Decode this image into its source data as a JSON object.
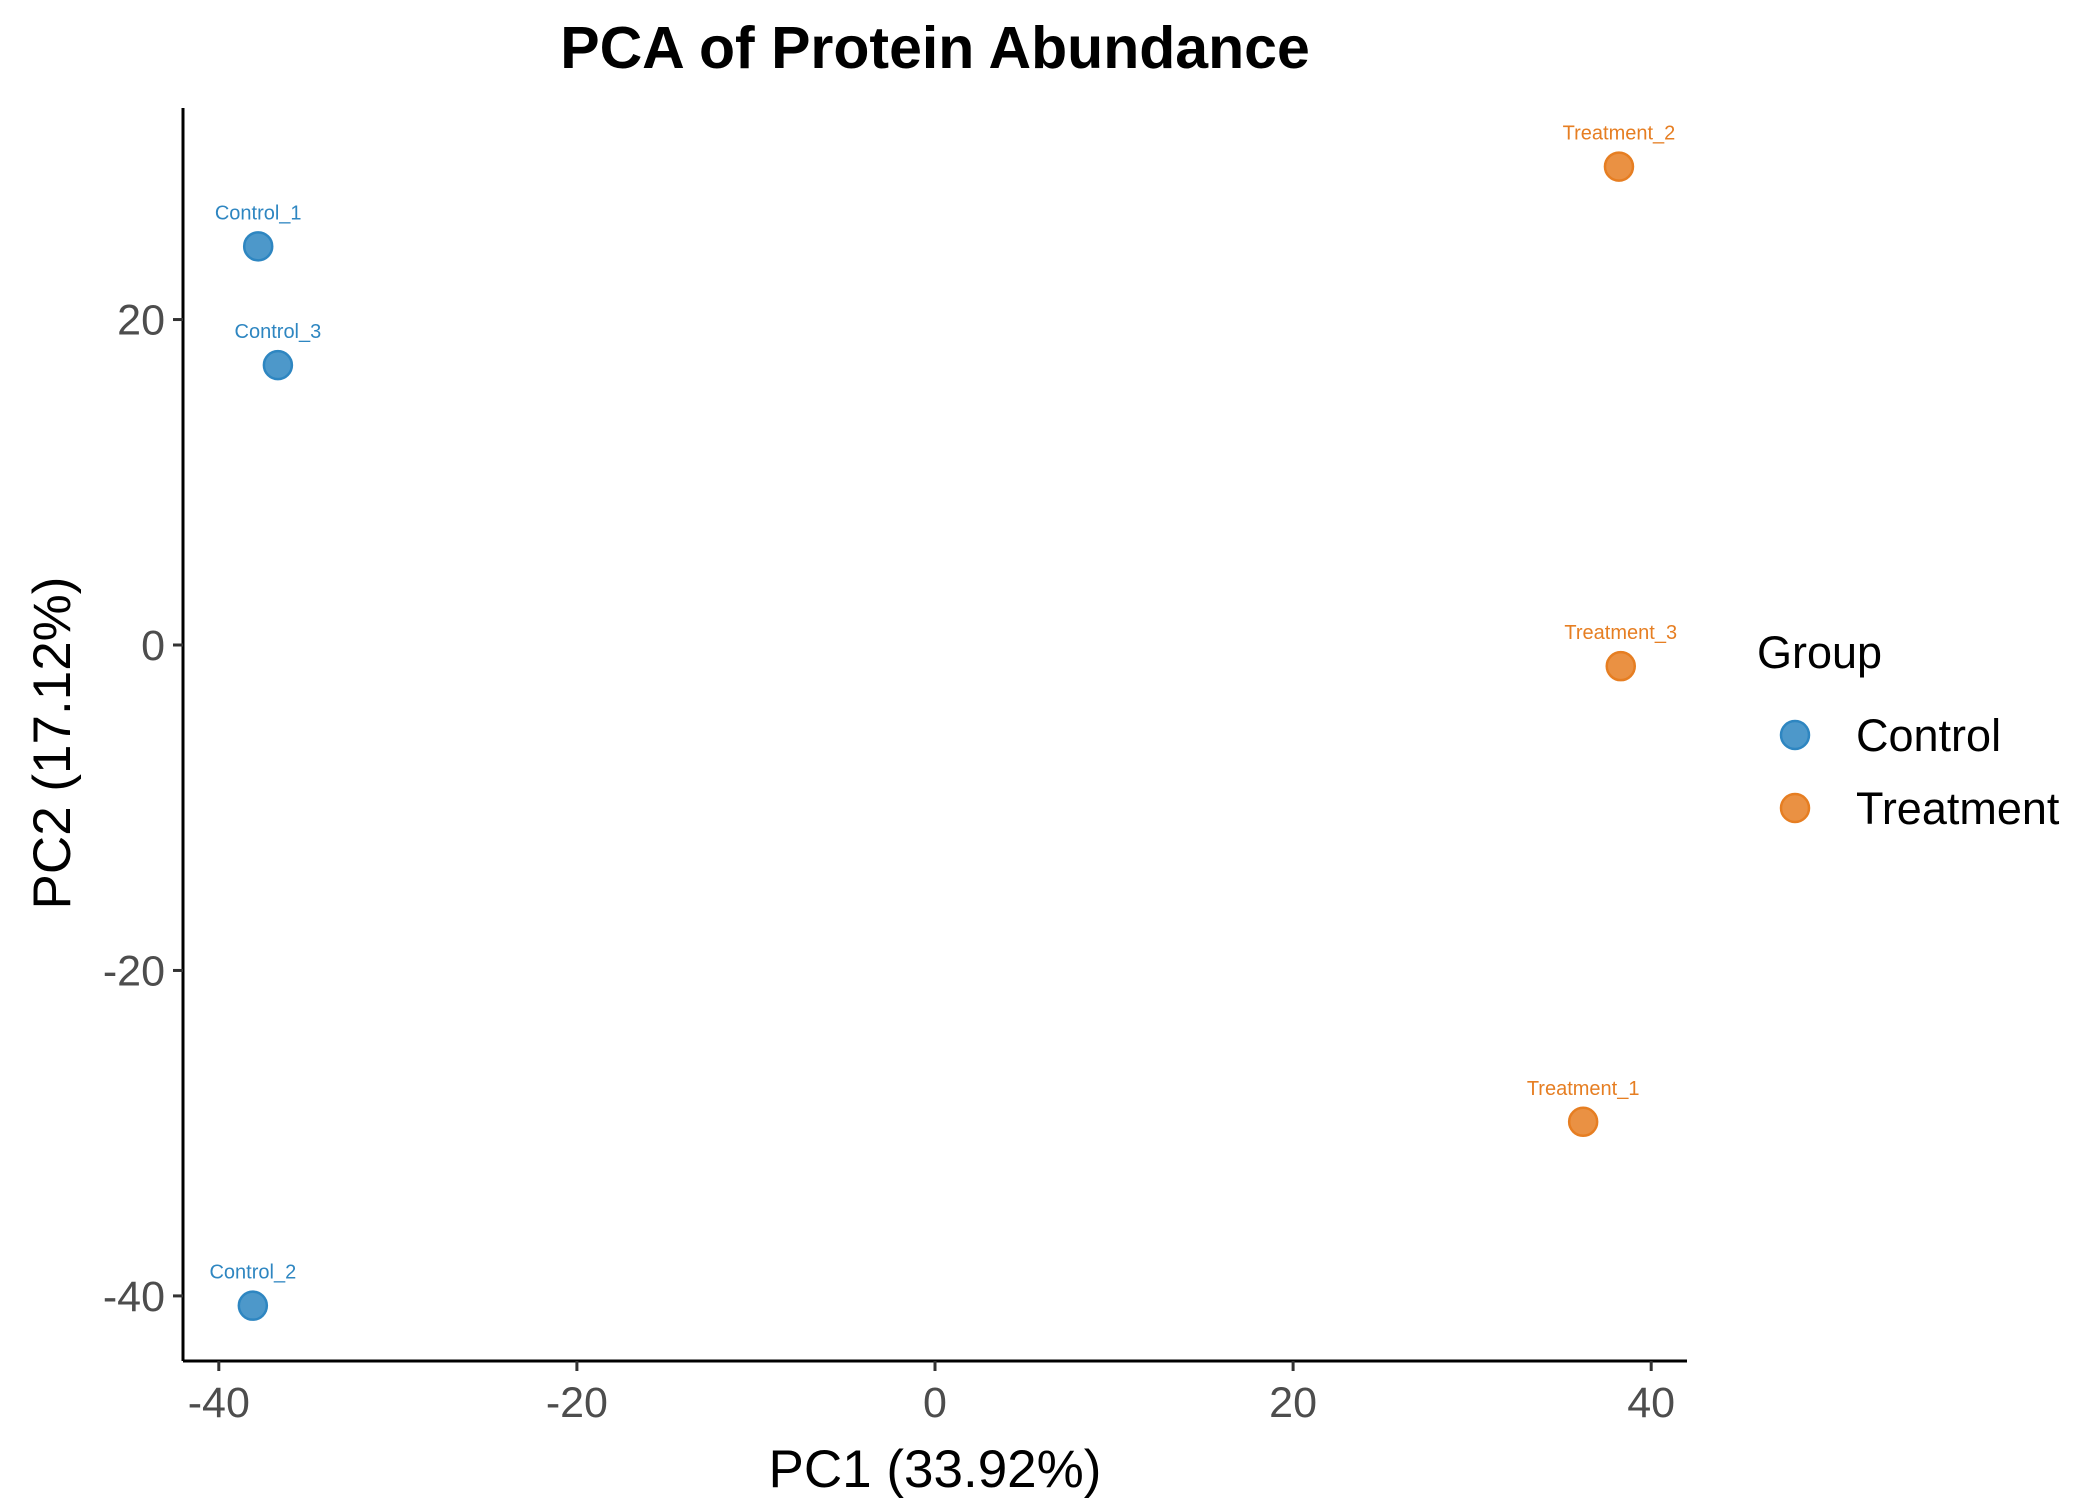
{
  "chart_data": {
    "type": "scatter",
    "title": "PCA of Protein Abundance",
    "xlabel": "PC1 (33.92%)",
    "ylabel": "PC2 (17.12%)",
    "xlim": [
      -42,
      42
    ],
    "ylim": [
      -44,
      33
    ],
    "xticks": [
      -40,
      -20,
      0,
      20,
      40
    ],
    "yticks": [
      -40,
      -20,
      0,
      20
    ],
    "xtick_labels": [
      "-40",
      "-20",
      "0",
      "20",
      "40"
    ],
    "ytick_labels": [
      "-40",
      "-20",
      "0",
      "20"
    ],
    "grid": false,
    "legend": {
      "title": "Group",
      "position": "right",
      "entries": [
        {
          "label": "Control",
          "color": "#2E86C1"
        },
        {
          "label": "Treatment",
          "color": "#E67E22"
        }
      ]
    },
    "series": [
      {
        "name": "Control",
        "color": "#2E86C1",
        "points": [
          {
            "label": "Control_1",
            "x": -37.8,
            "y": 24.5
          },
          {
            "label": "Control_3",
            "x": -36.7,
            "y": 17.2
          },
          {
            "label": "Control_2",
            "x": -38.1,
            "y": -40.6
          }
        ]
      },
      {
        "name": "Treatment",
        "color": "#E67E22",
        "points": [
          {
            "label": "Treatment_2",
            "x": 38.2,
            "y": 29.4
          },
          {
            "label": "Treatment_3",
            "x": 38.3,
            "y": -1.3
          },
          {
            "label": "Treatment_1",
            "x": 36.2,
            "y": -29.3
          }
        ]
      }
    ]
  }
}
